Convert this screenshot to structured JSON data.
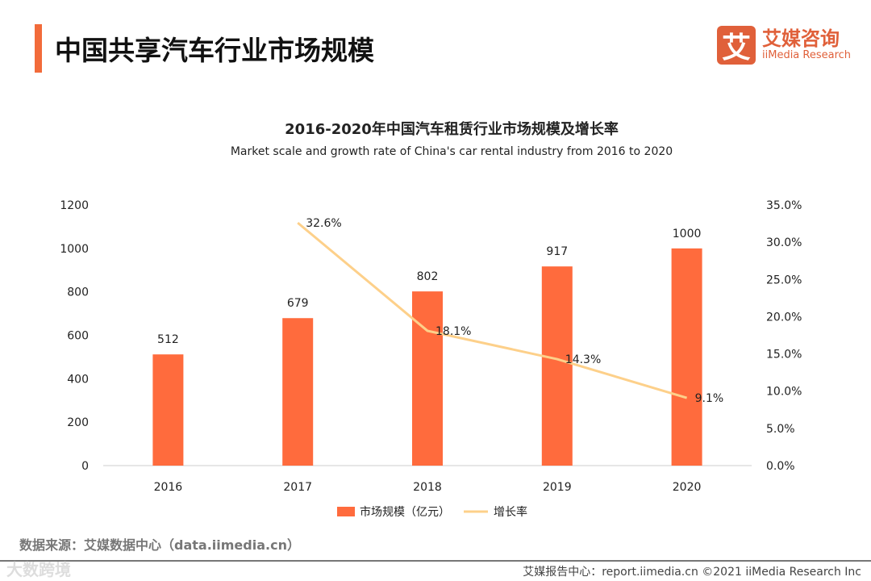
{
  "header": {
    "title": "中国共享汽车行业市场规模",
    "logo_mark": "艾",
    "logo_cn": "艾媒咨询",
    "logo_en": "iiMedia Research"
  },
  "chart_data": {
    "type": "bar+line",
    "title": "2016-2020年中国汽车租赁行业市场规模及增长率",
    "subtitle": "Market scale and growth rate of China's car rental industry from 2016 to 2020",
    "categories": [
      "2016",
      "2017",
      "2018",
      "2019",
      "2020"
    ],
    "series": [
      {
        "name": "市场规模（亿元）",
        "type": "bar",
        "axis": "left",
        "color": "#ff6b3d",
        "values": [
          512,
          679,
          802,
          917,
          1000
        ],
        "labels": [
          "512",
          "679",
          "802",
          "917",
          "1000"
        ]
      },
      {
        "name": "增长率",
        "type": "line",
        "axis": "right",
        "color": "#fdd08a",
        "values": [
          null,
          32.6,
          18.1,
          14.3,
          9.1
        ],
        "labels": [
          "",
          "32.6%",
          "18.1%",
          "14.3%",
          "9.1%"
        ]
      }
    ],
    "y_left": {
      "range": [
        0,
        1200
      ],
      "ticks": [
        "0",
        "200",
        "400",
        "600",
        "800",
        "1000",
        "1200"
      ]
    },
    "y_right": {
      "range": [
        0,
        35
      ],
      "ticks": [
        "0.0%",
        "5.0%",
        "10.0%",
        "15.0%",
        "20.0%",
        "25.0%",
        "30.0%",
        "35.0%"
      ]
    },
    "legend": "bottom",
    "grid": false
  },
  "footer": {
    "source": "数据来源：艾媒数据中心（data.iimedia.cn）",
    "report": "艾媒报告中心：report.iimedia.cn   ©2021  iiMedia Research  Inc",
    "watermark": "大数跨境"
  }
}
